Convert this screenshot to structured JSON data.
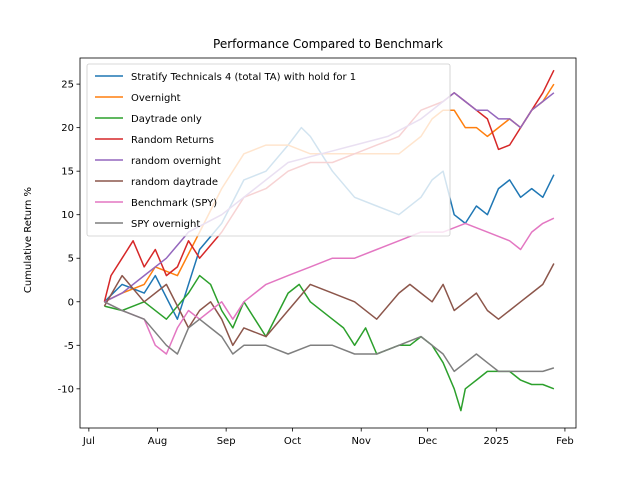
{
  "chart_data": {
    "type": "line",
    "title": "Performance Compared to Benchmark",
    "xlabel": "",
    "ylabel": "Cumulative Return %",
    "ylim": [
      -14.5,
      28
    ],
    "yticks": [
      -10,
      -5,
      0,
      5,
      10,
      15,
      20,
      25
    ],
    "xlim": [
      -4,
      220
    ],
    "xticks": [
      {
        "label": "Jul",
        "t": 0
      },
      {
        "label": "Aug",
        "t": 31
      },
      {
        "label": "Sep",
        "t": 62
      },
      {
        "label": "Oct",
        "t": 92
      },
      {
        "label": "Nov",
        "t": 123
      },
      {
        "label": "Dec",
        "t": 153
      },
      {
        "label": "2025",
        "t": 184
      },
      {
        "label": "Feb",
        "t": 215
      }
    ],
    "legend_position": "top-left",
    "series": [
      {
        "name": "Stratify Technicals 4 (total TA) with hold for 1",
        "color": "#1f77b4",
        "x": [
          7,
          15,
          25,
          30,
          40,
          50,
          60,
          70,
          80,
          90,
          96,
          100,
          110,
          120,
          130,
          140,
          150,
          155,
          160,
          165,
          170,
          175,
          180,
          185,
          190,
          195,
          200,
          205,
          210
        ],
        "y": [
          0,
          2,
          1,
          3,
          -2,
          6,
          9,
          14,
          15,
          18,
          20,
          19,
          15,
          12,
          11,
          10,
          12,
          14,
          15,
          10,
          9,
          11,
          10,
          13,
          14,
          12,
          13,
          12,
          14.6
        ]
      },
      {
        "name": "Overnight",
        "color": "#ff7f0e",
        "x": [
          7,
          15,
          25,
          30,
          40,
          50,
          60,
          70,
          80,
          90,
          100,
          110,
          120,
          130,
          140,
          150,
          155,
          160,
          165,
          170,
          175,
          180,
          185,
          190,
          195,
          200,
          205,
          210
        ],
        "y": [
          0,
          1,
          2,
          4,
          3,
          8,
          13,
          17,
          18,
          18,
          17,
          17,
          17,
          17,
          17,
          19,
          21,
          22,
          22,
          20,
          20,
          19,
          20,
          21,
          20,
          22,
          23,
          25
        ]
      },
      {
        "name": "Daytrade only",
        "color": "#2ca02c",
        "x": [
          7,
          15,
          25,
          35,
          45,
          50,
          55,
          60,
          65,
          70,
          75,
          80,
          90,
          95,
          100,
          110,
          115,
          120,
          125,
          130,
          140,
          145,
          150,
          155,
          160,
          165,
          168,
          170,
          175,
          180,
          190,
          195,
          200,
          205,
          210
        ],
        "y": [
          -0.5,
          -1,
          0,
          -2,
          1,
          3,
          2,
          -1,
          -3,
          0,
          -2,
          -4,
          1,
          2,
          0,
          -2,
          -3,
          -5,
          -3,
          -6,
          -5,
          -5,
          -4,
          -5,
          -7,
          -10,
          -12.5,
          -10,
          -9,
          -8,
          -8,
          -9,
          -9.5,
          -9.5,
          -10
        ]
      },
      {
        "name": "Random Returns",
        "color": "#d62728",
        "x": [
          7,
          10,
          15,
          20,
          25,
          30,
          35,
          40,
          45,
          50,
          60,
          70,
          80,
          90,
          100,
          110,
          120,
          130,
          140,
          150,
          160,
          165,
          170,
          175,
          180,
          185,
          190,
          195,
          200,
          205,
          210
        ],
        "y": [
          0,
          3,
          5,
          7,
          4,
          6,
          3,
          4,
          7,
          5,
          8,
          12,
          13,
          15,
          16,
          16,
          17,
          18,
          19,
          22,
          23,
          24,
          23,
          22,
          21,
          17.5,
          18,
          20,
          22,
          24,
          26.6
        ]
      },
      {
        "name": "random overnight",
        "color": "#9467bd",
        "x": [
          7,
          15,
          25,
          35,
          45,
          60,
          75,
          90,
          105,
          120,
          135,
          150,
          160,
          165,
          170,
          175,
          180,
          185,
          190,
          195,
          200,
          205,
          210
        ],
        "y": [
          0,
          1,
          3,
          5,
          8,
          10,
          13,
          16,
          17,
          18,
          19,
          21,
          23,
          24,
          23,
          22,
          22,
          21,
          21,
          20,
          22,
          23,
          24
        ]
      },
      {
        "name": "random daytrade",
        "color": "#8c564b",
        "x": [
          7,
          15,
          25,
          35,
          45,
          50,
          55,
          60,
          65,
          70,
          80,
          90,
          100,
          110,
          120,
          130,
          140,
          145,
          150,
          155,
          160,
          165,
          170,
          175,
          180,
          185,
          190,
          195,
          200,
          205,
          210
        ],
        "y": [
          -0.5,
          3,
          0,
          2,
          -3,
          -1,
          0,
          -2,
          -5,
          -3,
          -4,
          -1,
          2,
          1,
          0,
          -2,
          1,
          2,
          1,
          0,
          2,
          -1,
          0,
          1,
          -1,
          -2,
          -1,
          0,
          1,
          2,
          4.4
        ]
      },
      {
        "name": "Benchmark (SPY)",
        "color": "#e377c2",
        "x": [
          7,
          15,
          25,
          30,
          35,
          40,
          45,
          50,
          55,
          60,
          65,
          70,
          75,
          80,
          90,
          100,
          110,
          120,
          130,
          140,
          150,
          160,
          170,
          180,
          190,
          195,
          200,
          205,
          210
        ],
        "y": [
          0,
          -1,
          -2,
          -5,
          -6,
          -3,
          -1,
          -2,
          -1,
          0,
          -2,
          0,
          1,
          2,
          3,
          4,
          5,
          5,
          6,
          7,
          8,
          8,
          9,
          8,
          7,
          6,
          8,
          9,
          9.6
        ]
      },
      {
        "name": "SPY overnight",
        "color": "#7f7f7f",
        "x": [
          7,
          15,
          25,
          35,
          40,
          45,
          50,
          55,
          60,
          65,
          70,
          80,
          90,
          100,
          110,
          120,
          130,
          140,
          150,
          155,
          160,
          165,
          170,
          175,
          180,
          185,
          190,
          195,
          200,
          205,
          210
        ],
        "y": [
          0,
          -1,
          -2,
          -5,
          -6,
          -3,
          -2,
          -3,
          -4,
          -6,
          -5,
          -5,
          -6,
          -5,
          -5,
          -6,
          -6,
          -5,
          -4,
          -5,
          -6,
          -8,
          -7,
          -6,
          -7,
          -8,
          -8,
          -8,
          -8,
          -8,
          -7.6
        ]
      }
    ]
  }
}
